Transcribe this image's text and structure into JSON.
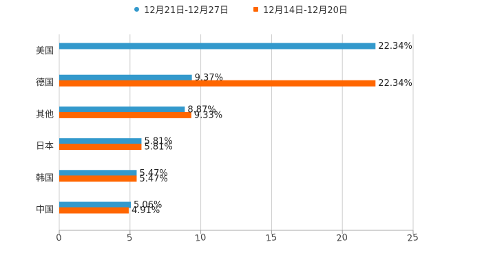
{
  "chart_data": {
    "type": "bar",
    "orientation": "horizontal",
    "categories": [
      "美国",
      "德国",
      "其他",
      "日本",
      "韩国",
      "中国"
    ],
    "series": [
      {
        "name": "12月21日-12月27日",
        "color": "#3399cc",
        "values": [
          22.34,
          9.37,
          8.87,
          5.81,
          5.47,
          5.06
        ],
        "labels": [
          "22.34%",
          "9.37%",
          "8.87%",
          "5.81%",
          "5.47%",
          "5.06%"
        ]
      },
      {
        "name": "12月14日-12月20日",
        "color": "#ff6600",
        "values": [
          null,
          22.34,
          9.33,
          5.81,
          5.47,
          4.91
        ],
        "labels": [
          "",
          "22.34%",
          "9.33%",
          "5.81%",
          "5.47%",
          "4.91%"
        ]
      }
    ],
    "xlim": [
      0,
      25
    ],
    "xticks": [
      0,
      5,
      10,
      15,
      20,
      25
    ],
    "tick_labels": [
      "0",
      "5",
      "10",
      "15",
      "20",
      "25"
    ],
    "grid": true,
    "legend": "top-center"
  }
}
